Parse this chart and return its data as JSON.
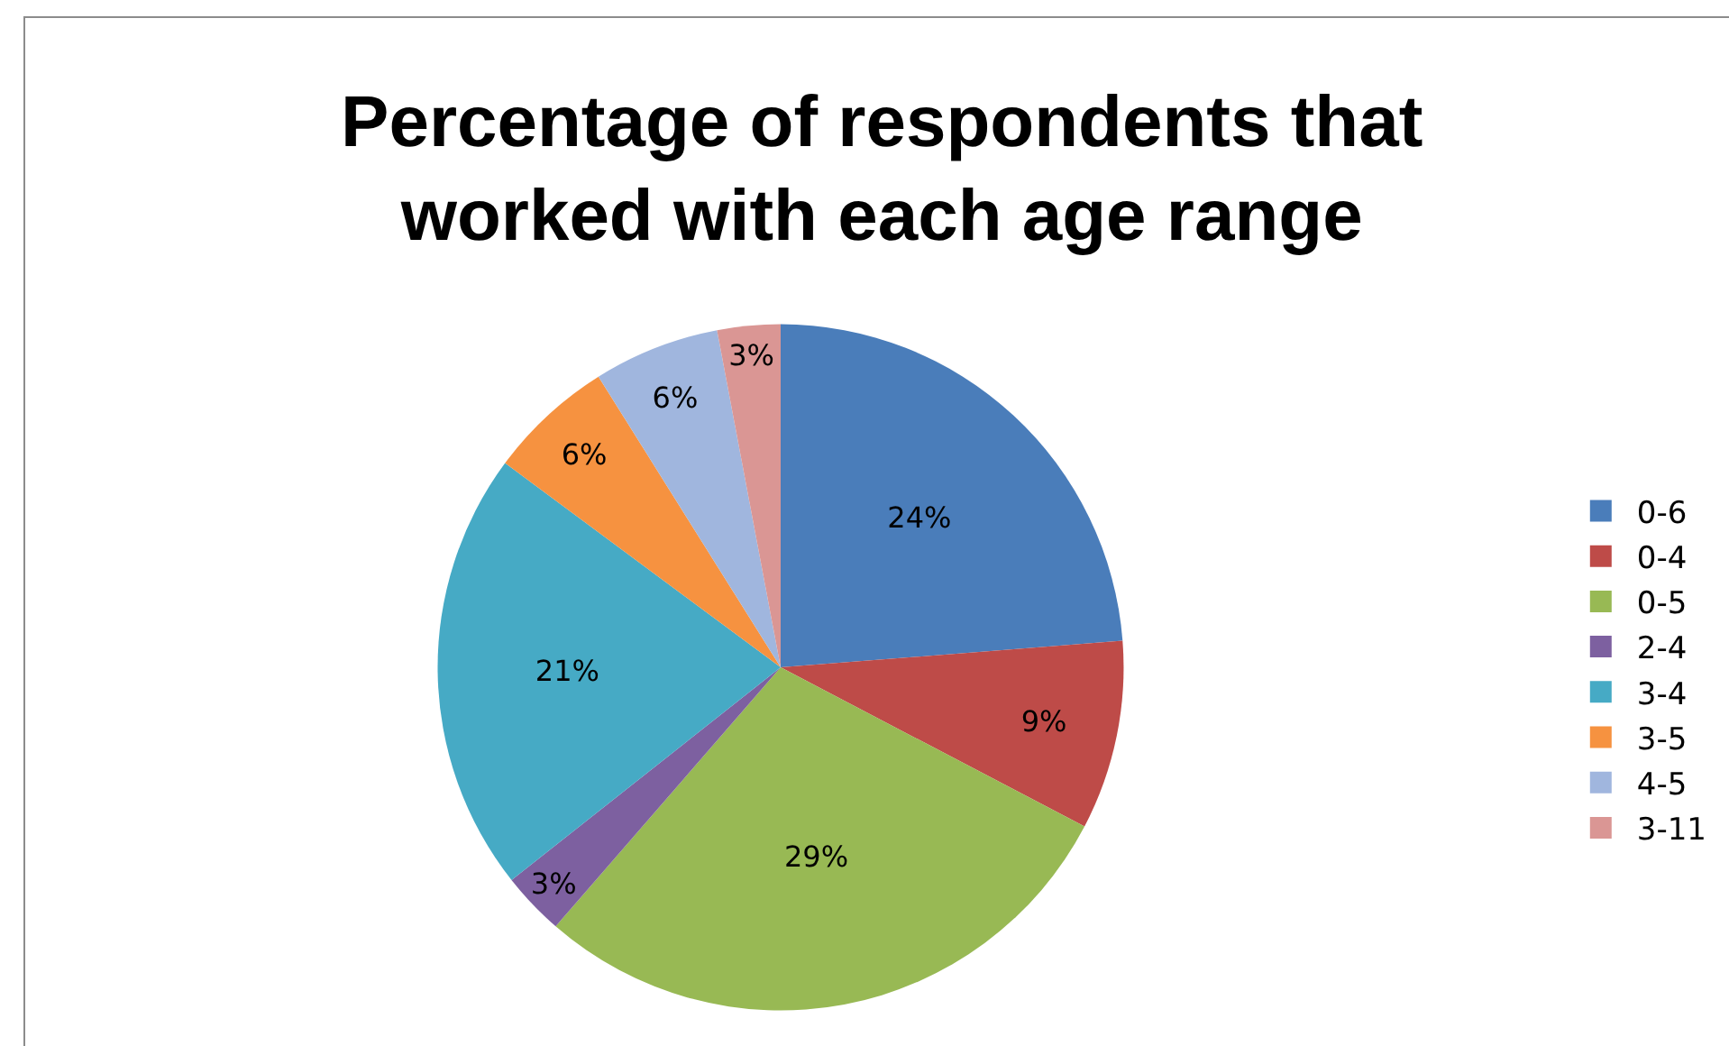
{
  "chart_data": {
    "type": "pie",
    "title": "Percentage of respondents that\nworked with each age range",
    "categories": [
      "0-6",
      "0-4",
      "0-5",
      "2-4",
      "3-4",
      "3-5",
      "4-5",
      "3-11"
    ],
    "values": [
      24,
      9,
      29,
      3,
      21,
      6,
      6,
      3
    ],
    "value_labels": [
      "24%",
      "9%",
      "29%",
      "3%",
      "21%",
      "6%",
      "6%",
      "3%"
    ],
    "colors": [
      "#4a7dba",
      "#be4b48",
      "#98b954",
      "#7d60a0",
      "#46aac5",
      "#f69240",
      "#a0b6de",
      "#da9694"
    ],
    "legend": "right"
  }
}
